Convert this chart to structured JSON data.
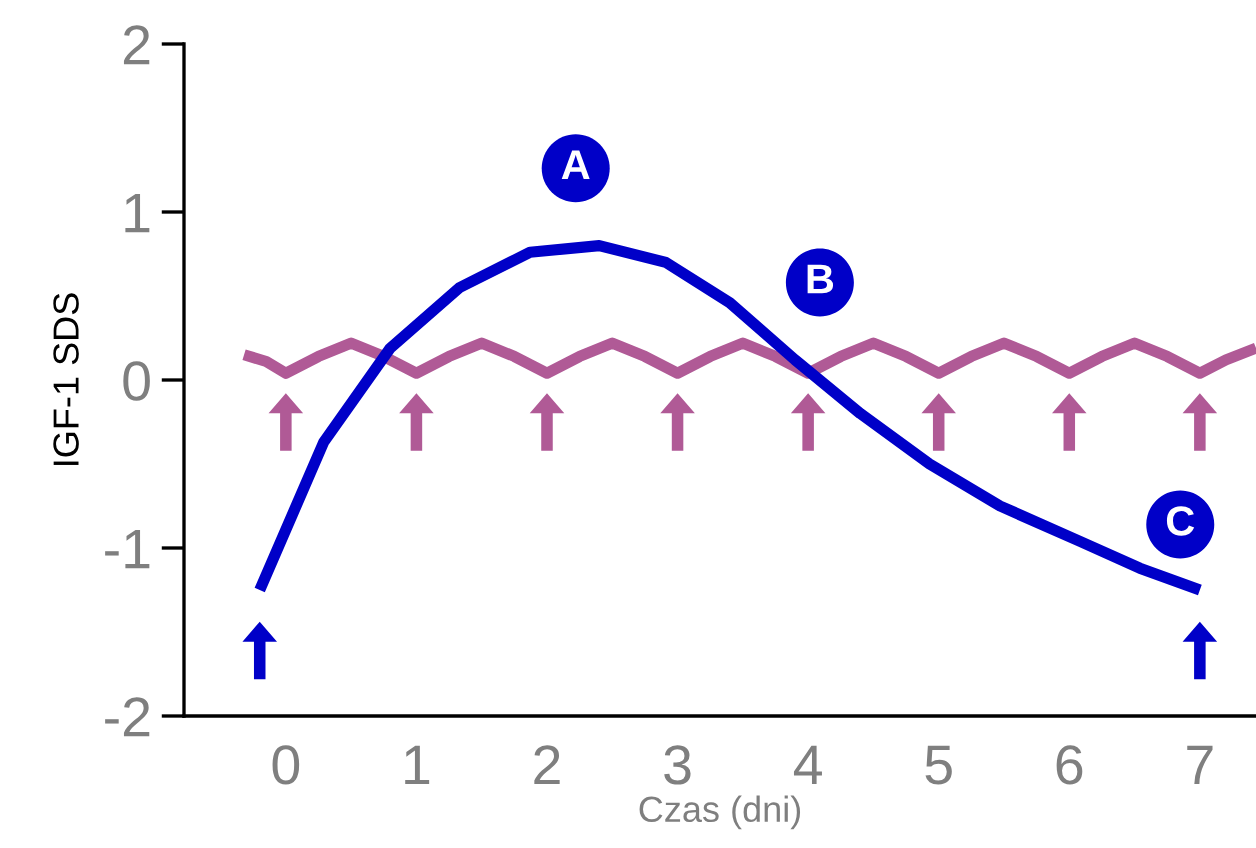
{
  "chart_data": {
    "type": "line",
    "xlabel": "Czas (dni)",
    "ylabel": "IGF-1 SDS",
    "xlim": [
      -0.78,
      7.43
    ],
    "ylim": [
      -2,
      2
    ],
    "xticks": [
      0,
      1,
      2,
      3,
      4,
      5,
      6,
      7
    ],
    "yticks": [
      -2,
      -1,
      0,
      1,
      2
    ],
    "grid": false,
    "legend": false,
    "series": [
      {
        "color": "#b05a96",
        "x": [
          -0.32,
          -0.15,
          0,
          0.25,
          0.5,
          0.75,
          1,
          1.25,
          1.5,
          1.75,
          2,
          2.25,
          2.5,
          2.75,
          3,
          3.25,
          3.5,
          3.75,
          4,
          4.25,
          4.5,
          4.75,
          5,
          5.25,
          5.5,
          5.75,
          6,
          6.25,
          6.5,
          6.75,
          7,
          7.2,
          7.43
        ],
        "values": [
          0.15,
          0.11,
          0.04,
          0.14,
          0.22,
          0.14,
          0.04,
          0.14,
          0.22,
          0.14,
          0.04,
          0.14,
          0.22,
          0.14,
          0.04,
          0.14,
          0.22,
          0.14,
          0.04,
          0.14,
          0.22,
          0.14,
          0.04,
          0.14,
          0.22,
          0.14,
          0.04,
          0.14,
          0.22,
          0.14,
          0.04,
          0.12,
          0.19
        ]
      },
      {
        "color": "#0000c8",
        "x": [
          -0.2,
          0.29,
          0.8,
          1.33,
          1.87,
          2.4,
          2.91,
          3.4,
          3.9,
          4.4,
          4.93,
          5.47,
          6.08,
          6.54,
          7.0
        ],
        "values": [
          -1.25,
          -0.37,
          0.19,
          0.55,
          0.76,
          0.8,
          0.7,
          0.46,
          0.12,
          -0.2,
          -0.5,
          -0.75,
          -0.96,
          -1.12,
          -1.25
        ]
      },
      {
        "type": "scatter",
        "marker": "triangle",
        "color": "#b05a96",
        "x": [
          0,
          1,
          2,
          3,
          4,
          5,
          6,
          7
        ],
        "values": [
          -0.25,
          -0.25,
          -0.25,
          -0.25,
          -0.25,
          -0.25,
          -0.25,
          -0.25
        ]
      },
      {
        "type": "scatter",
        "marker": "triangle",
        "color": "#0000c8",
        "x": [
          -0.2,
          7.0
        ],
        "values": [
          -1.61,
          -1.61
        ]
      }
    ],
    "annotations": [
      {
        "text": "A",
        "x": 2.22,
        "y": 1.26
      },
      {
        "text": "B",
        "x": 4.09,
        "y": 0.58
      },
      {
        "text": "C",
        "x": 6.85,
        "y": -0.86
      }
    ]
  }
}
